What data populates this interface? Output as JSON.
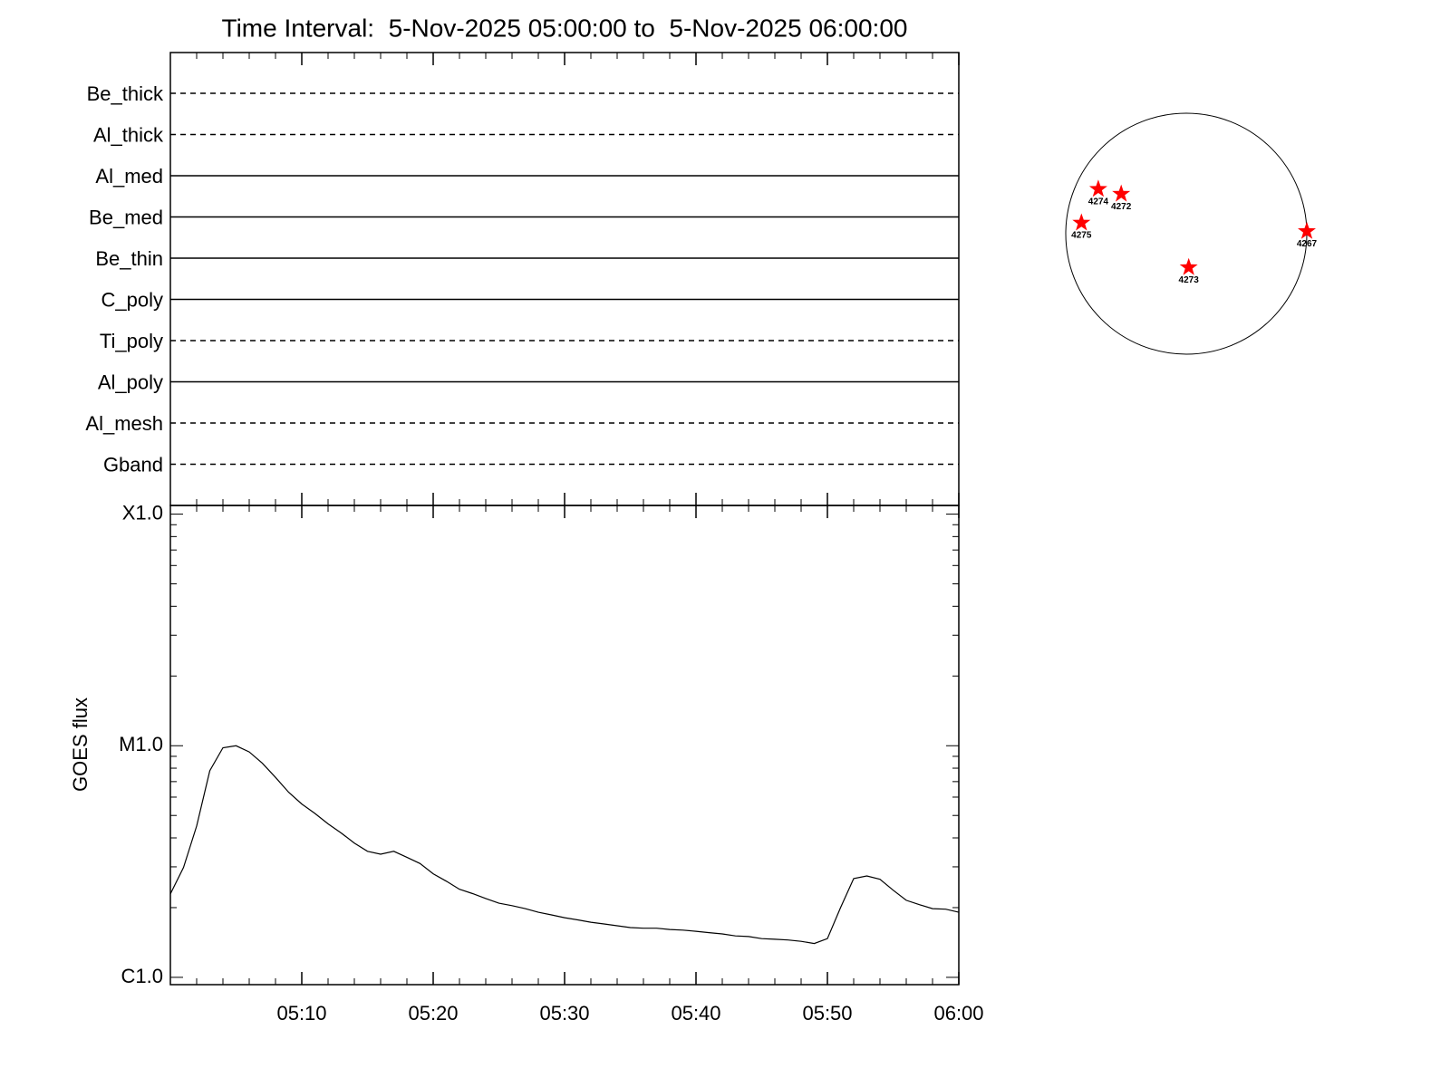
{
  "chart_data": [
    {
      "type": "states",
      "title": "Time Interval:  5-Nov-2025 05:00:00 to  5-Nov-2025 06:00:00",
      "categories": [
        "Be_thick",
        "Al_thick",
        "Al_med",
        "Be_med",
        "Be_thin",
        "C_poly",
        "Ti_poly",
        "Al_poly",
        "Al_mesh",
        "Gband"
      ],
      "styles": [
        "dashed",
        "dashed",
        "solid",
        "solid",
        "solid",
        "solid",
        "dashed",
        "solid",
        "dashed",
        "dashed"
      ],
      "color": "#000000"
    },
    {
      "type": "line",
      "ylabel": "GOES flux",
      "log_scale": true,
      "x": [
        "05:00",
        "05:01",
        "05:02",
        "05:03",
        "05:04",
        "05:05",
        "05:06",
        "05:07",
        "05:08",
        "05:09",
        "05:10",
        "05:11",
        "05:12",
        "05:13",
        "05:14",
        "05:15",
        "05:16",
        "05:17",
        "05:18",
        "05:19",
        "05:20",
        "05:21",
        "05:22",
        "05:23",
        "05:24",
        "05:25",
        "05:26",
        "05:27",
        "05:28",
        "05:29",
        "05:30",
        "05:31",
        "05:32",
        "05:33",
        "05:34",
        "05:35",
        "05:36",
        "05:37",
        "05:38",
        "05:39",
        "05:40",
        "05:41",
        "05:42",
        "05:43",
        "05:44",
        "05:45",
        "05:46",
        "05:47",
        "05:48",
        "05:49",
        "05:50",
        "05:51",
        "05:52",
        "05:53",
        "05:54",
        "05:55",
        "05:56",
        "05:57",
        "05:58",
        "05:59",
        "06:00"
      ],
      "series": [
        {
          "name": "GOES flux",
          "color": "#000000",
          "values": [
            2.29e-06,
            2.98e-06,
            4.5e-06,
            7.8e-06,
            9.8e-06,
            1e-05,
            9.4e-06,
            8.4e-06,
            7.3e-06,
            6.3e-06,
            5.6e-06,
            5.1e-06,
            4.6e-06,
            4.2e-06,
            3.8e-06,
            3.5e-06,
            3.4e-06,
            3.5e-06,
            3.3e-06,
            3.1e-06,
            2.8e-06,
            2.6e-06,
            2.4e-06,
            2.3e-06,
            2.19e-06,
            2.09e-06,
            2.04e-06,
            1.98e-06,
            1.91e-06,
            1.86e-06,
            1.81e-06,
            1.77e-06,
            1.73e-06,
            1.7e-06,
            1.67e-06,
            1.64e-06,
            1.63e-06,
            1.63e-06,
            1.61e-06,
            1.6e-06,
            1.58e-06,
            1.56e-06,
            1.54e-06,
            1.51e-06,
            1.5e-06,
            1.47e-06,
            1.46e-06,
            1.45e-06,
            1.43e-06,
            1.4e-06,
            1.47e-06,
            2e-06,
            2.67e-06,
            2.74e-06,
            2.65e-06,
            2.38e-06,
            2.15e-06,
            2.06e-06,
            1.98e-06,
            1.97e-06,
            1.91e-06
          ]
        }
      ],
      "xlim": [
        "05:00",
        "06:00"
      ],
      "xticks": [
        "05:10",
        "05:20",
        "05:30",
        "05:40",
        "05:50",
        "06:00"
      ],
      "minor_xticks": [
        "05:02",
        "05:04",
        "05:06",
        "05:08",
        "05:12",
        "05:14",
        "05:16",
        "05:18",
        "05:22",
        "05:24",
        "05:26",
        "05:28",
        "05:32",
        "05:34",
        "05:36",
        "05:38",
        "05:42",
        "05:44",
        "05:46",
        "05:48",
        "05:52",
        "05:54",
        "05:56",
        "05:58"
      ],
      "ylim": [
        9.3e-07,
        0.000109
      ],
      "yticks": [
        {
          "value": 1e-06,
          "label": "C1.0"
        },
        {
          "value": 1e-05,
          "label": "M1.0"
        },
        {
          "value": 0.0001,
          "label": "X1.0"
        }
      ],
      "minor_yticks": [
        2e-06,
        3e-06,
        4e-06,
        5e-06,
        6e-06,
        7e-06,
        8e-06,
        9e-06,
        2e-05,
        3e-05,
        4e-05,
        5e-05,
        6e-05,
        7e-05,
        8e-05,
        9e-05
      ]
    },
    {
      "type": "scatter",
      "color": "#ff0000",
      "labels": [
        "4274",
        "4272",
        "4275",
        "4267",
        "4273"
      ],
      "x": [
        -0.73,
        -0.54,
        -0.87,
        1.0,
        0.02
      ],
      "values": [
        0.37,
        0.33,
        0.09,
        0.02,
        -0.28
      ],
      "xlim": [
        -1,
        1
      ],
      "ylim": [
        -1,
        1
      ]
    }
  ]
}
